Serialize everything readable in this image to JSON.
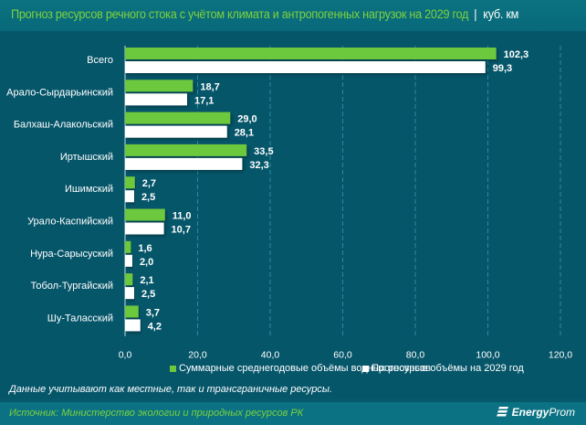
{
  "header": {
    "title": "Прогноз ресурсов речного стока с учётом климата и антропогенных нагрузок на 2029 год",
    "separator": "|",
    "unit": "куб. км"
  },
  "colors": {
    "series_green": "#6cc83c",
    "series_white": "#ffffff",
    "background": "#06566a",
    "title_green": "#7ed23d"
  },
  "chart_data": {
    "type": "bar",
    "orientation": "horizontal",
    "title": "Прогноз ресурсов речного стока с учётом климата и антропогенных нагрузок на 2029 год | куб. км",
    "categories": [
      "Всего",
      "Арало-Сырдарьинский",
      "Балхаш-Алакольский",
      "Иртышский",
      "Ишимский",
      "Урало-Каспийский",
      "Нура-Сарысуский",
      "Тобол-Тургайский",
      "Шу-Таласский"
    ],
    "series": [
      {
        "name": "Суммарные среднегодовые объёмы водных ресурсов",
        "color": "#6cc83c",
        "values": [
          102.3,
          18.7,
          29.0,
          33.5,
          2.7,
          11.0,
          1.6,
          2.1,
          3.7
        ],
        "labels": [
          "102,3",
          "18,7",
          "29,0",
          "33,5",
          "2,7",
          "11,0",
          "1,6",
          "2,1",
          "3,7"
        ]
      },
      {
        "name": "Прогнозные объёмы на 2029 год",
        "color": "#ffffff",
        "values": [
          99.3,
          17.1,
          28.1,
          32.3,
          2.5,
          10.7,
          2.0,
          2.5,
          4.2
        ],
        "labels": [
          "99,3",
          "17,1",
          "28,1",
          "32,3",
          "2,5",
          "10,7",
          "2,0",
          "2,5",
          "4,2"
        ]
      }
    ],
    "xlim": [
      0,
      120
    ],
    "xticks": [
      0,
      20,
      40,
      60,
      80,
      100,
      120
    ],
    "xtick_labels": [
      "0,0",
      "20,0",
      "40,0",
      "60,0",
      "80,0",
      "100,0",
      "120,0"
    ],
    "xlabel": "",
    "ylabel": "",
    "grid": "vertical dashed",
    "legend_position": "bottom"
  },
  "legend": [
    {
      "label": "Суммарные среднегодовые объёмы водных ресурсов",
      "color": "#6cc83c"
    },
    {
      "label": "Прогнозные объёмы на 2029 год",
      "color": "#ffffff"
    }
  ],
  "note": "Данные учитывают как местные, так и трансграничные ресурсы.",
  "footer": {
    "source": "Источник: Министерство экологии и природных ресурсов РК",
    "logo_bold": "Energy",
    "logo_rest": "Prom"
  }
}
